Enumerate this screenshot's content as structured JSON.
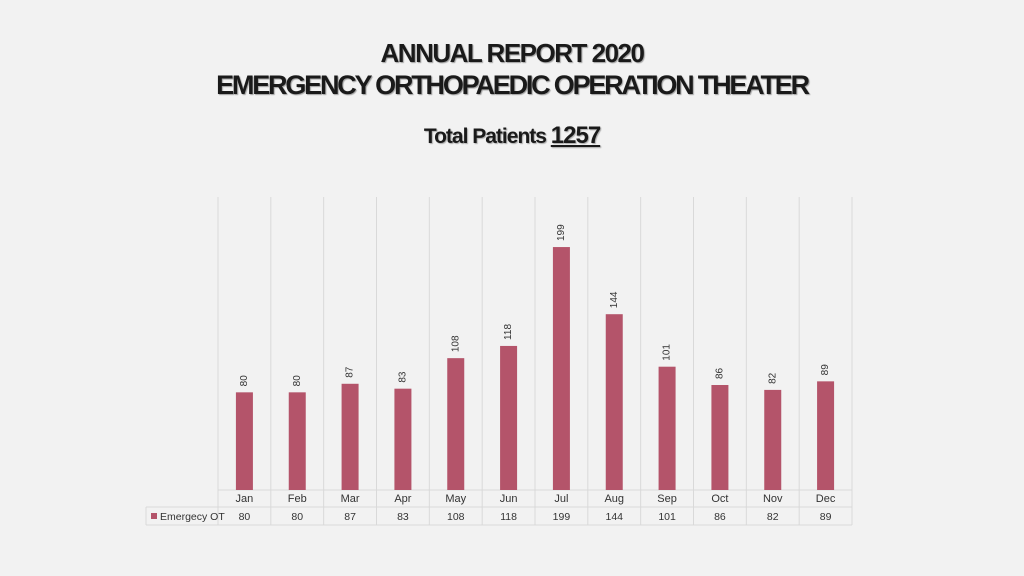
{
  "slide": {
    "title_line1": "ANNUAL REPORT 2020",
    "title_line2": "EMERGENCY ORTHOPAEDIC OPERATION THEATER",
    "subtitle_prefix": "Total Patients ",
    "subtitle_value": "1257"
  },
  "colors": {
    "bar": "#b4546a",
    "grid": "#d9d9d9",
    "background": "#f2f2f2"
  },
  "chart_data": {
    "type": "bar",
    "title": "",
    "xlabel": "",
    "ylabel": "",
    "categories": [
      "Jan",
      "Feb",
      "Mar",
      "Apr",
      "May",
      "Jun",
      "Jul",
      "Aug",
      "Sep",
      "Oct",
      "Nov",
      "Dec"
    ],
    "series": [
      {
        "name": "Emergecy OT",
        "values": [
          80,
          80,
          87,
          83,
          108,
          118,
          199,
          144,
          101,
          86,
          82,
          89
        ]
      }
    ],
    "ylim": [
      0,
      240
    ],
    "data_labels": true,
    "data_table": true,
    "vertical_gridlines": true,
    "legend_placement": "data-table-left"
  }
}
